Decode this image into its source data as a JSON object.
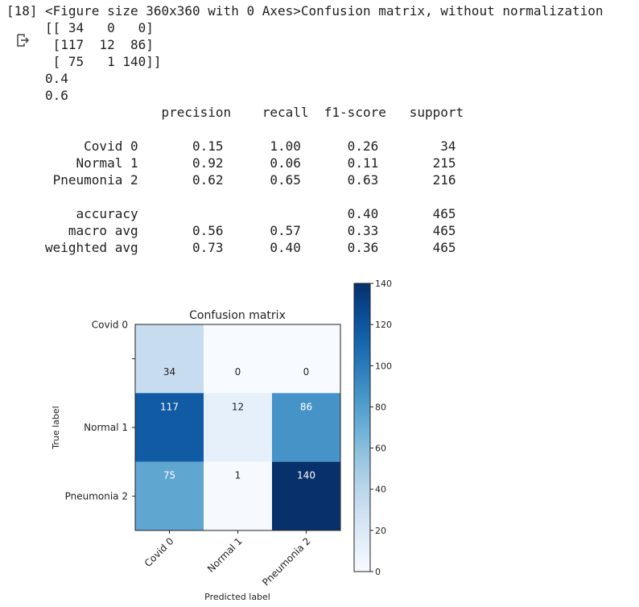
{
  "cell": {
    "execution_count": "[18]",
    "output_lines": [
      "<Figure size 360x360 with 0 Axes>Confusion matrix, without normalization",
      "[[ 34   0   0]",
      " [117  12  86]",
      " [ 75   1 140]]",
      "0.4",
      "0.6",
      "               precision    recall  f1-score   support",
      "",
      "     Covid 0       0.15      1.00      0.26        34",
      "    Normal 1       0.92      0.06      0.11       215",
      " Pneumonia 2       0.62      0.65      0.63       216",
      "",
      "    accuracy                           0.40       465",
      "   macro avg       0.56      0.57      0.33       465",
      "weighted avg       0.73      0.40      0.36       465"
    ]
  },
  "icons": {
    "output_icon": "output-redirect-icon"
  },
  "chart_data": {
    "type": "heatmap",
    "title": "Confusion matrix",
    "xlabel": "Predicted label",
    "ylabel": "True label",
    "x_categories": [
      "Covid 0",
      "Normal 1",
      "Pneumonia 2"
    ],
    "y_categories": [
      "Covid 0",
      "Normal 1",
      "Pneumonia 2"
    ],
    "values": [
      [
        34,
        0,
        0
      ],
      [
        117,
        12,
        86
      ],
      [
        75,
        1,
        140
      ]
    ],
    "colormap": "Blues",
    "vmin": 0,
    "vmax": 140,
    "colorbar_ticks": [
      "0",
      "20",
      "40",
      "60",
      "80",
      "100",
      "120",
      "140"
    ]
  }
}
